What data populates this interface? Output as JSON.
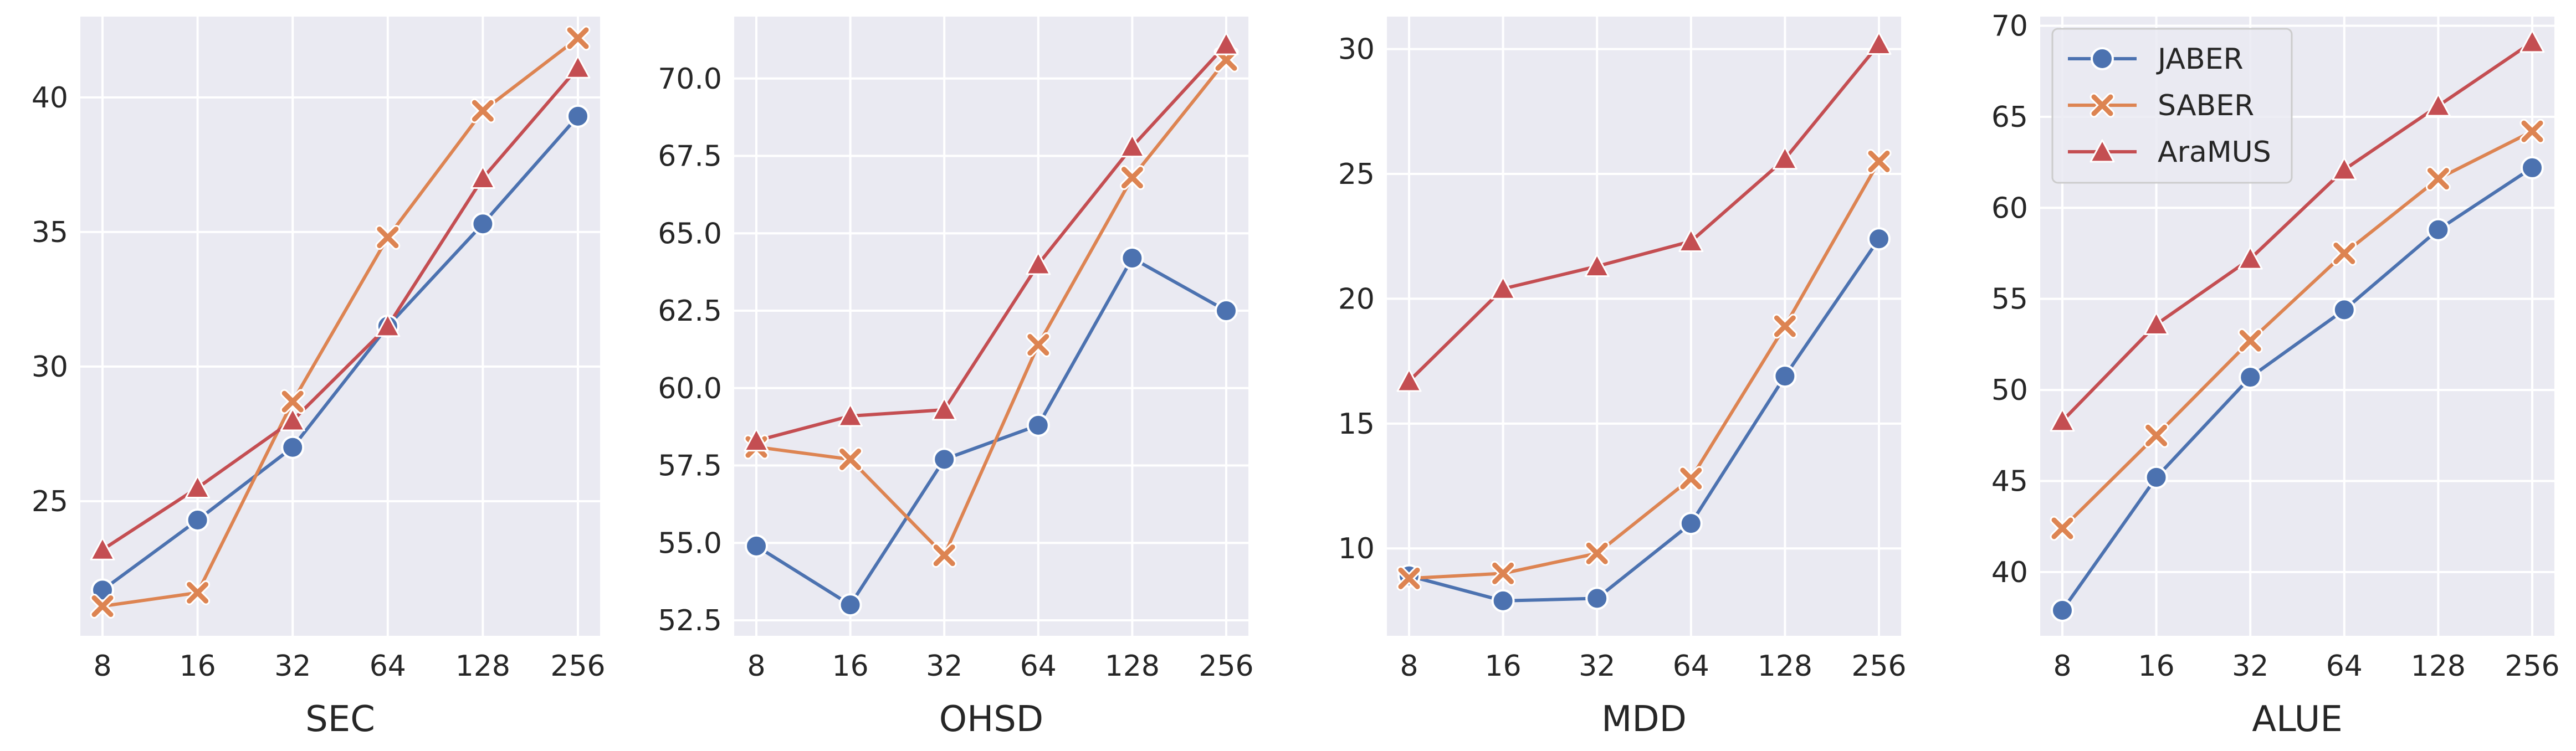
{
  "chart_data": [
    {
      "type": "line",
      "xlabel": "SEC",
      "categories": [
        "8",
        "16",
        "32",
        "64",
        "128",
        "256"
      ],
      "ylim": [
        20.0,
        43.0
      ],
      "yticks": [
        25,
        30,
        35,
        40
      ],
      "yticklabels": [
        "25",
        "30",
        "35",
        "40"
      ],
      "series": [
        {
          "name": "JABER",
          "values": [
            21.7,
            24.3,
            27.0,
            31.5,
            35.3,
            39.3
          ]
        },
        {
          "name": "SABER",
          "values": [
            21.1,
            21.6,
            28.7,
            34.8,
            39.5,
            42.2
          ]
        },
        {
          "name": "AraMUS",
          "values": [
            23.2,
            25.5,
            28.0,
            31.5,
            37.0,
            41.1
          ]
        }
      ],
      "grid": true
    },
    {
      "type": "line",
      "xlabel": "OHSD",
      "categories": [
        "8",
        "16",
        "32",
        "64",
        "128",
        "256"
      ],
      "ylim": [
        52.0,
        72.0
      ],
      "yticks": [
        52.5,
        55.0,
        57.5,
        60.0,
        62.5,
        65.0,
        67.5,
        70.0
      ],
      "yticklabels": [
        "52.5",
        "55.0",
        "57.5",
        "60.0",
        "62.5",
        "65.0",
        "67.5",
        "70.0"
      ],
      "series": [
        {
          "name": "JABER",
          "values": [
            54.9,
            53.0,
            57.7,
            58.8,
            64.2,
            62.5
          ]
        },
        {
          "name": "SABER",
          "values": [
            58.1,
            57.7,
            54.6,
            61.4,
            66.8,
            70.6
          ]
        },
        {
          "name": "AraMUS",
          "values": [
            58.3,
            59.1,
            59.3,
            64.0,
            67.8,
            71.1
          ]
        }
      ],
      "grid": true
    },
    {
      "type": "line",
      "xlabel": "MDD",
      "categories": [
        "8",
        "16",
        "32",
        "64",
        "128",
        "256"
      ],
      "ylim": [
        6.5,
        31.3
      ],
      "yticks": [
        10,
        15,
        20,
        25,
        30
      ],
      "yticklabels": [
        "10",
        "15",
        "20",
        "25",
        "30"
      ],
      "series": [
        {
          "name": "JABER",
          "values": [
            8.9,
            7.9,
            8.0,
            11.0,
            16.9,
            22.4
          ]
        },
        {
          "name": "SABER",
          "values": [
            8.8,
            9.0,
            9.8,
            12.8,
            18.9,
            25.5
          ]
        },
        {
          "name": "AraMUS",
          "values": [
            16.7,
            20.4,
            21.3,
            22.3,
            25.6,
            30.2
          ]
        }
      ],
      "grid": true
    },
    {
      "type": "line",
      "xlabel": "ALUE",
      "categories": [
        "8",
        "16",
        "32",
        "64",
        "128",
        "256"
      ],
      "ylim": [
        36.5,
        70.5
      ],
      "yticks": [
        40,
        45,
        50,
        55,
        60,
        65,
        70
      ],
      "yticklabels": [
        "40",
        "45",
        "50",
        "55",
        "60",
        "65",
        "70"
      ],
      "series": [
        {
          "name": "JABER",
          "values": [
            37.9,
            45.2,
            50.7,
            54.4,
            58.8,
            62.2
          ]
        },
        {
          "name": "SABER",
          "values": [
            42.4,
            47.5,
            52.7,
            57.5,
            61.6,
            64.2
          ]
        },
        {
          "name": "AraMUS",
          "values": [
            48.3,
            53.6,
            57.2,
            62.1,
            65.6,
            69.1
          ]
        }
      ],
      "grid": true
    }
  ],
  "legend": {
    "placement": "top-left",
    "entries": [
      {
        "name": "JABER",
        "marker": "circle",
        "color": "#4c72b0"
      },
      {
        "name": "SABER",
        "marker": "x",
        "color": "#dd8452"
      },
      {
        "name": "AraMUS",
        "marker": "triangle",
        "color": "#c44e52"
      }
    ]
  },
  "colors": {
    "background": "#eaeaf2",
    "grid": "#ffffff",
    "JABER": "#4c72b0",
    "SABER": "#dd8452",
    "AraMUS": "#c44e52"
  }
}
